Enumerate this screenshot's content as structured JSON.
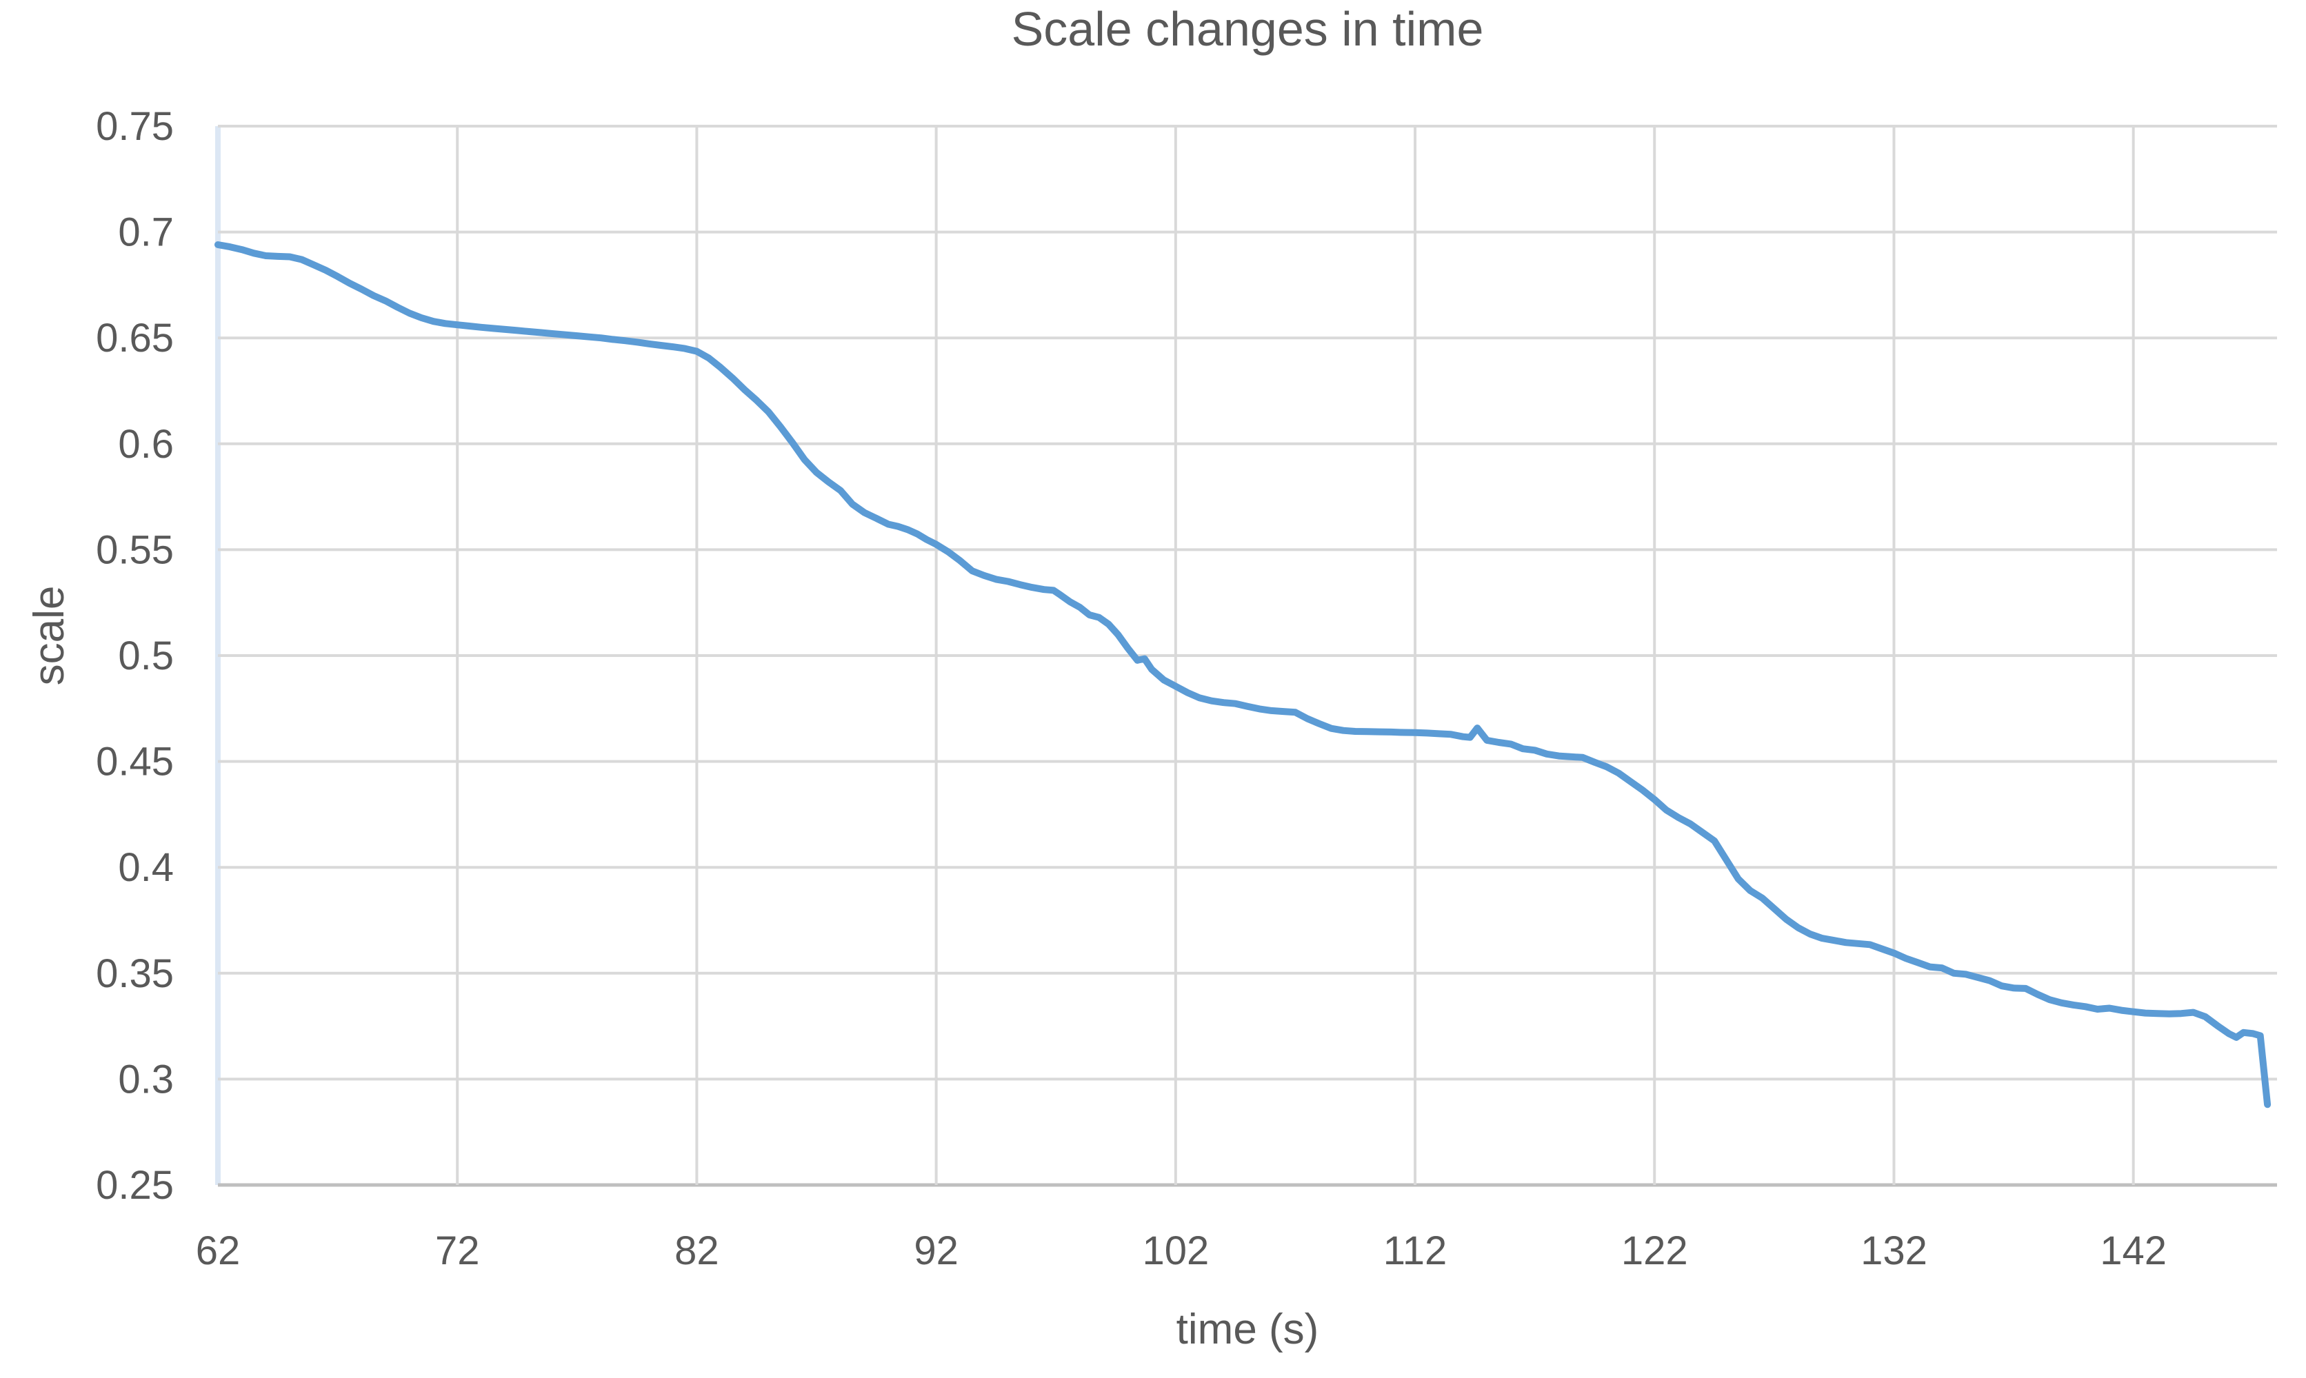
{
  "colors": {
    "series": "#5b9bd5",
    "gridline": "#d9d9d9",
    "axis_line": "#bfbfbf",
    "axis_stripe": "#dce7f4",
    "text": "#595959"
  },
  "chart_data": {
    "type": "line",
    "title": "Scale changes in time",
    "xlabel": "time (s)",
    "ylabel": "scale",
    "xlim": [
      62,
      148
    ],
    "ylim": [
      0.25,
      0.75
    ],
    "x_ticks": [
      62,
      72,
      82,
      92,
      102,
      112,
      122,
      132,
      142
    ],
    "y_ticks": [
      0.25,
      0.3,
      0.35,
      0.4,
      0.45,
      0.5,
      0.55,
      0.6,
      0.65,
      0.7,
      0.75
    ],
    "grid": true,
    "legend": false,
    "series": [
      {
        "name": "scale",
        "points": [
          [
            62.0,
            0.694
          ],
          [
            62.5,
            0.693
          ],
          [
            63.0,
            0.6917
          ],
          [
            63.5,
            0.69
          ],
          [
            64.0,
            0.6888
          ],
          [
            64.5,
            0.6885
          ],
          [
            65.0,
            0.6883
          ],
          [
            65.5,
            0.687
          ],
          [
            66.0,
            0.6845
          ],
          [
            66.5,
            0.682
          ],
          [
            67.0,
            0.679
          ],
          [
            67.5,
            0.6758
          ],
          [
            68.0,
            0.673
          ],
          [
            68.5,
            0.67
          ],
          [
            69.0,
            0.6675
          ],
          [
            69.5,
            0.6645
          ],
          [
            70.0,
            0.6617
          ],
          [
            70.5,
            0.6595
          ],
          [
            71.0,
            0.6578
          ],
          [
            71.5,
            0.6568
          ],
          [
            72.0,
            0.6562
          ],
          [
            72.5,
            0.6556
          ],
          [
            73.0,
            0.655
          ],
          [
            73.5,
            0.6545
          ],
          [
            74.0,
            0.654
          ],
          [
            74.5,
            0.6535
          ],
          [
            75.0,
            0.653
          ],
          [
            75.5,
            0.6525
          ],
          [
            76.0,
            0.652
          ],
          [
            76.5,
            0.6515
          ],
          [
            77.0,
            0.651
          ],
          [
            77.5,
            0.6505
          ],
          [
            78.0,
            0.65
          ],
          [
            78.5,
            0.6493
          ],
          [
            79.0,
            0.6487
          ],
          [
            79.5,
            0.648
          ],
          [
            80.0,
            0.6472
          ],
          [
            80.5,
            0.6465
          ],
          [
            81.0,
            0.6458
          ],
          [
            81.5,
            0.645
          ],
          [
            82.0,
            0.6437
          ],
          [
            82.5,
            0.6405
          ],
          [
            83.0,
            0.636
          ],
          [
            83.5,
            0.631
          ],
          [
            84.0,
            0.6255
          ],
          [
            84.5,
            0.6205
          ],
          [
            85.0,
            0.615
          ],
          [
            85.5,
            0.608
          ],
          [
            86.0,
            0.6005
          ],
          [
            86.5,
            0.5925
          ],
          [
            87.0,
            0.5865
          ],
          [
            87.5,
            0.582
          ],
          [
            88.0,
            0.578
          ],
          [
            88.5,
            0.5715
          ],
          [
            89.0,
            0.5675
          ],
          [
            89.5,
            0.5648
          ],
          [
            90.0,
            0.562
          ],
          [
            90.4,
            0.561
          ],
          [
            90.8,
            0.5595
          ],
          [
            91.2,
            0.5575
          ],
          [
            91.6,
            0.5548
          ],
          [
            92.0,
            0.5525
          ],
          [
            92.5,
            0.549
          ],
          [
            93.0,
            0.5448
          ],
          [
            93.5,
            0.54
          ],
          [
            94.0,
            0.5378
          ],
          [
            94.5,
            0.536
          ],
          [
            95.0,
            0.535
          ],
          [
            95.5,
            0.5335
          ],
          [
            96.0,
            0.5322
          ],
          [
            96.5,
            0.5312
          ],
          [
            96.9,
            0.5308
          ],
          [
            97.2,
            0.5285
          ],
          [
            97.6,
            0.5253
          ],
          [
            98.0,
            0.5228
          ],
          [
            98.4,
            0.5192
          ],
          [
            98.8,
            0.518
          ],
          [
            99.2,
            0.5148
          ],
          [
            99.6,
            0.5098
          ],
          [
            100.0,
            0.5035
          ],
          [
            100.4,
            0.4978
          ],
          [
            100.7,
            0.4985
          ],
          [
            101.0,
            0.4935
          ],
          [
            101.5,
            0.4885
          ],
          [
            102.0,
            0.4855
          ],
          [
            102.5,
            0.4825
          ],
          [
            103.0,
            0.48
          ],
          [
            103.5,
            0.4786
          ],
          [
            104.0,
            0.4778
          ],
          [
            104.5,
            0.4773
          ],
          [
            105.0,
            0.476
          ],
          [
            105.5,
            0.4748
          ],
          [
            106.0,
            0.474
          ],
          [
            106.5,
            0.4736
          ],
          [
            107.0,
            0.4732
          ],
          [
            107.5,
            0.4702
          ],
          [
            108.0,
            0.4678
          ],
          [
            108.5,
            0.4656
          ],
          [
            109.0,
            0.4646
          ],
          [
            109.5,
            0.4642
          ],
          [
            110.0,
            0.4641
          ],
          [
            110.5,
            0.464
          ],
          [
            111.0,
            0.4639
          ],
          [
            111.5,
            0.4637
          ],
          [
            112.0,
            0.4636
          ],
          [
            112.5,
            0.4634
          ],
          [
            113.0,
            0.4631
          ],
          [
            113.5,
            0.4628
          ],
          [
            114.0,
            0.4617
          ],
          [
            114.3,
            0.4614
          ],
          [
            114.6,
            0.4658
          ],
          [
            115.0,
            0.46
          ],
          [
            115.5,
            0.459
          ],
          [
            116.0,
            0.4582
          ],
          [
            116.5,
            0.456
          ],
          [
            117.0,
            0.4553
          ],
          [
            117.5,
            0.4535
          ],
          [
            118.0,
            0.4526
          ],
          [
            118.5,
            0.4522
          ],
          [
            119.0,
            0.4519
          ],
          [
            119.5,
            0.4496
          ],
          [
            120.0,
            0.4475
          ],
          [
            120.5,
            0.4445
          ],
          [
            121.0,
            0.4405
          ],
          [
            121.5,
            0.4365
          ],
          [
            122.0,
            0.432
          ],
          [
            122.5,
            0.427
          ],
          [
            123.0,
            0.4235
          ],
          [
            123.5,
            0.4205
          ],
          [
            124.0,
            0.4165
          ],
          [
            124.5,
            0.4125
          ],
          [
            125.0,
            0.4035
          ],
          [
            125.5,
            0.3945
          ],
          [
            126.0,
            0.389
          ],
          [
            126.5,
            0.3855
          ],
          [
            127.0,
            0.3805
          ],
          [
            127.5,
            0.3755
          ],
          [
            128.0,
            0.3715
          ],
          [
            128.5,
            0.3685
          ],
          [
            129.0,
            0.3665
          ],
          [
            129.5,
            0.3655
          ],
          [
            130.0,
            0.3645
          ],
          [
            130.5,
            0.364
          ],
          [
            131.0,
            0.3635
          ],
          [
            131.5,
            0.3615
          ],
          [
            132.0,
            0.3595
          ],
          [
            132.5,
            0.357
          ],
          [
            133.0,
            0.355
          ],
          [
            133.5,
            0.353
          ],
          [
            134.0,
            0.3525
          ],
          [
            134.5,
            0.35
          ],
          [
            135.0,
            0.3495
          ],
          [
            135.5,
            0.348
          ],
          [
            136.0,
            0.3465
          ],
          [
            136.5,
            0.344
          ],
          [
            137.0,
            0.343
          ],
          [
            137.5,
            0.3428
          ],
          [
            138.0,
            0.34
          ],
          [
            138.5,
            0.3375
          ],
          [
            139.0,
            0.336
          ],
          [
            139.5,
            0.335
          ],
          [
            140.0,
            0.3342
          ],
          [
            140.5,
            0.333
          ],
          [
            141.0,
            0.3335
          ],
          [
            141.5,
            0.3325
          ],
          [
            142.0,
            0.3318
          ],
          [
            142.5,
            0.3312
          ],
          [
            143.0,
            0.331
          ],
          [
            143.5,
            0.3308
          ],
          [
            144.0,
            0.331
          ],
          [
            144.5,
            0.3315
          ],
          [
            145.0,
            0.3295
          ],
          [
            145.5,
            0.3253
          ],
          [
            146.0,
            0.3214
          ],
          [
            146.3,
            0.3197
          ],
          [
            146.6,
            0.322
          ],
          [
            147.0,
            0.3215
          ],
          [
            147.3,
            0.3205
          ],
          [
            147.6,
            0.288
          ]
        ]
      }
    ]
  }
}
